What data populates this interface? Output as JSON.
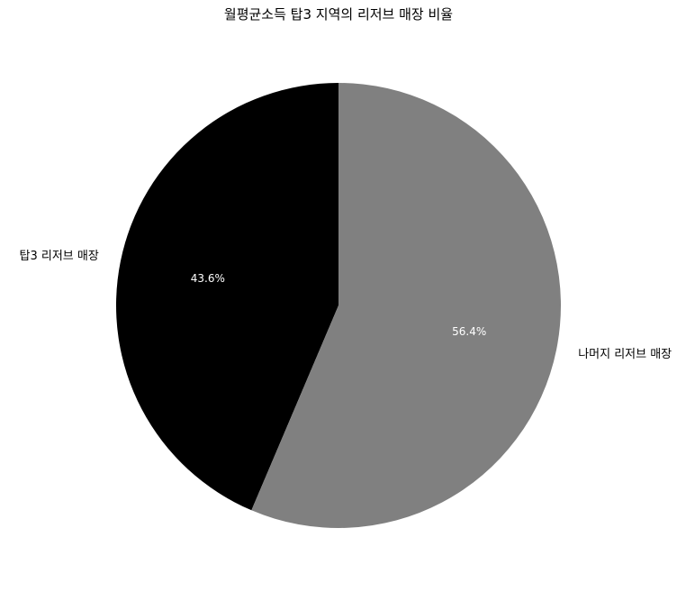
{
  "chart_data": {
    "type": "pie",
    "title": "월평균소득 탑3 지역의 리저브 매장 비율",
    "start_angle_deg": 90,
    "direction": "counterclockwise",
    "slices": [
      {
        "label": "탑3 리저브 매장",
        "value": 43.6,
        "pct_text": "43.6%",
        "color": "#000000"
      },
      {
        "label": "나머지 리저브 매장",
        "value": 56.4,
        "pct_text": "56.4%",
        "color": "#808080"
      }
    ]
  }
}
